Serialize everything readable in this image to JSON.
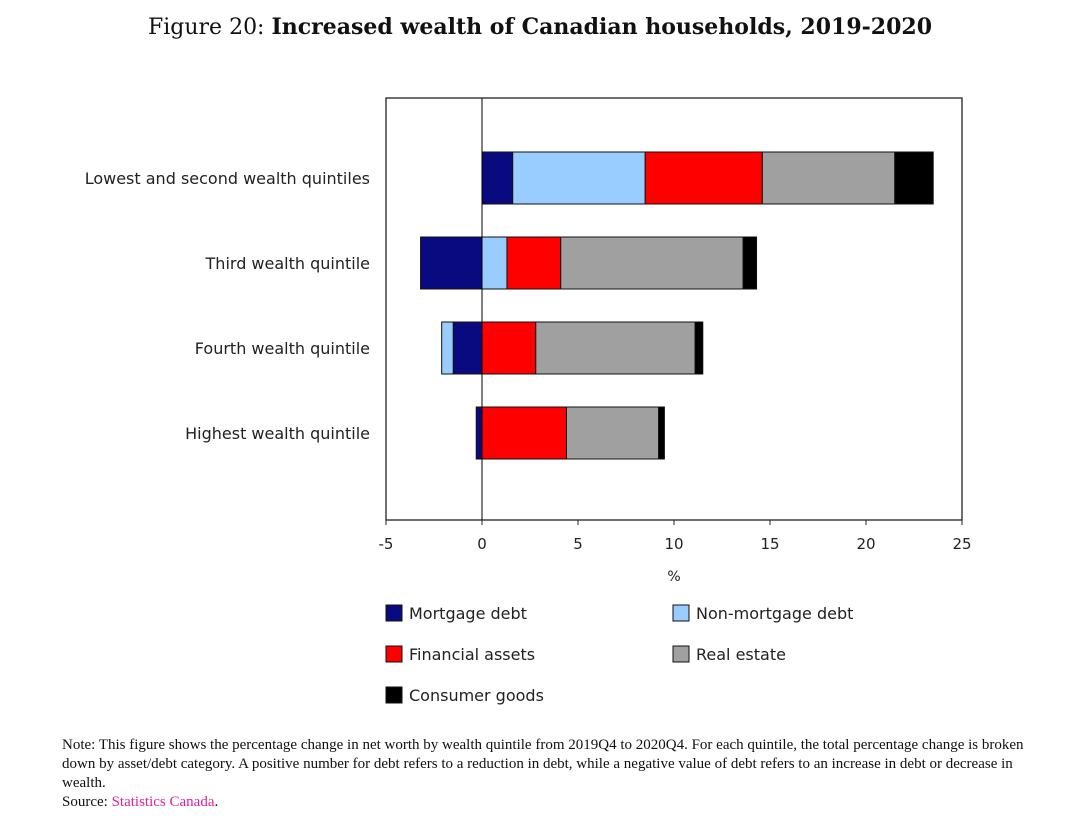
{
  "figure": {
    "label": "Figure 20:",
    "title": "Increased wealth of Canadian households, 2019-2020"
  },
  "chart_data": {
    "type": "bar",
    "orientation": "horizontal",
    "stacked": true,
    "categories": [
      "Lowest and second wealth quintiles",
      "Third wealth quintile",
      "Fourth wealth quintile",
      "Highest wealth quintile"
    ],
    "series": [
      {
        "name": "Mortgage debt",
        "color": "#0a0a80",
        "values": [
          1.6,
          -3.2,
          -1.5,
          -0.3
        ]
      },
      {
        "name": "Non-mortgage debt",
        "color": "#99ccff",
        "values": [
          6.9,
          1.3,
          -0.6,
          0.0
        ]
      },
      {
        "name": "Financial assets",
        "color": "#ff0000",
        "values": [
          6.1,
          2.8,
          2.8,
          4.4
        ]
      },
      {
        "name": "Real estate",
        "color": "#a0a0a0",
        "values": [
          6.9,
          9.5,
          8.3,
          4.8
        ]
      },
      {
        "name": "Consumer goods",
        "color": "#000000",
        "values": [
          2.0,
          0.7,
          0.4,
          0.3
        ]
      }
    ],
    "xlabel": "%",
    "xlim": [
      -5,
      25
    ],
    "xticks": [
      -5,
      0,
      5,
      10,
      15,
      20,
      25
    ],
    "tick_labels": [
      "-5",
      "0",
      "5",
      "10",
      "15",
      "20",
      "25"
    ],
    "legend_position": "bottom",
    "grid": false
  },
  "note": {
    "text": "Note: This figure shows the percentage change in net worth by wealth quintile from 2019Q4 to 2020Q4. For each quintile, the total percentage change is broken down by asset/debt category. A positive number for debt refers to a reduction in debt, while a negative value of debt refers to an increase in debt or decrease in wealth.",
    "source_label": "Source:",
    "source_link": "Statistics Canada",
    "source_end": "."
  }
}
